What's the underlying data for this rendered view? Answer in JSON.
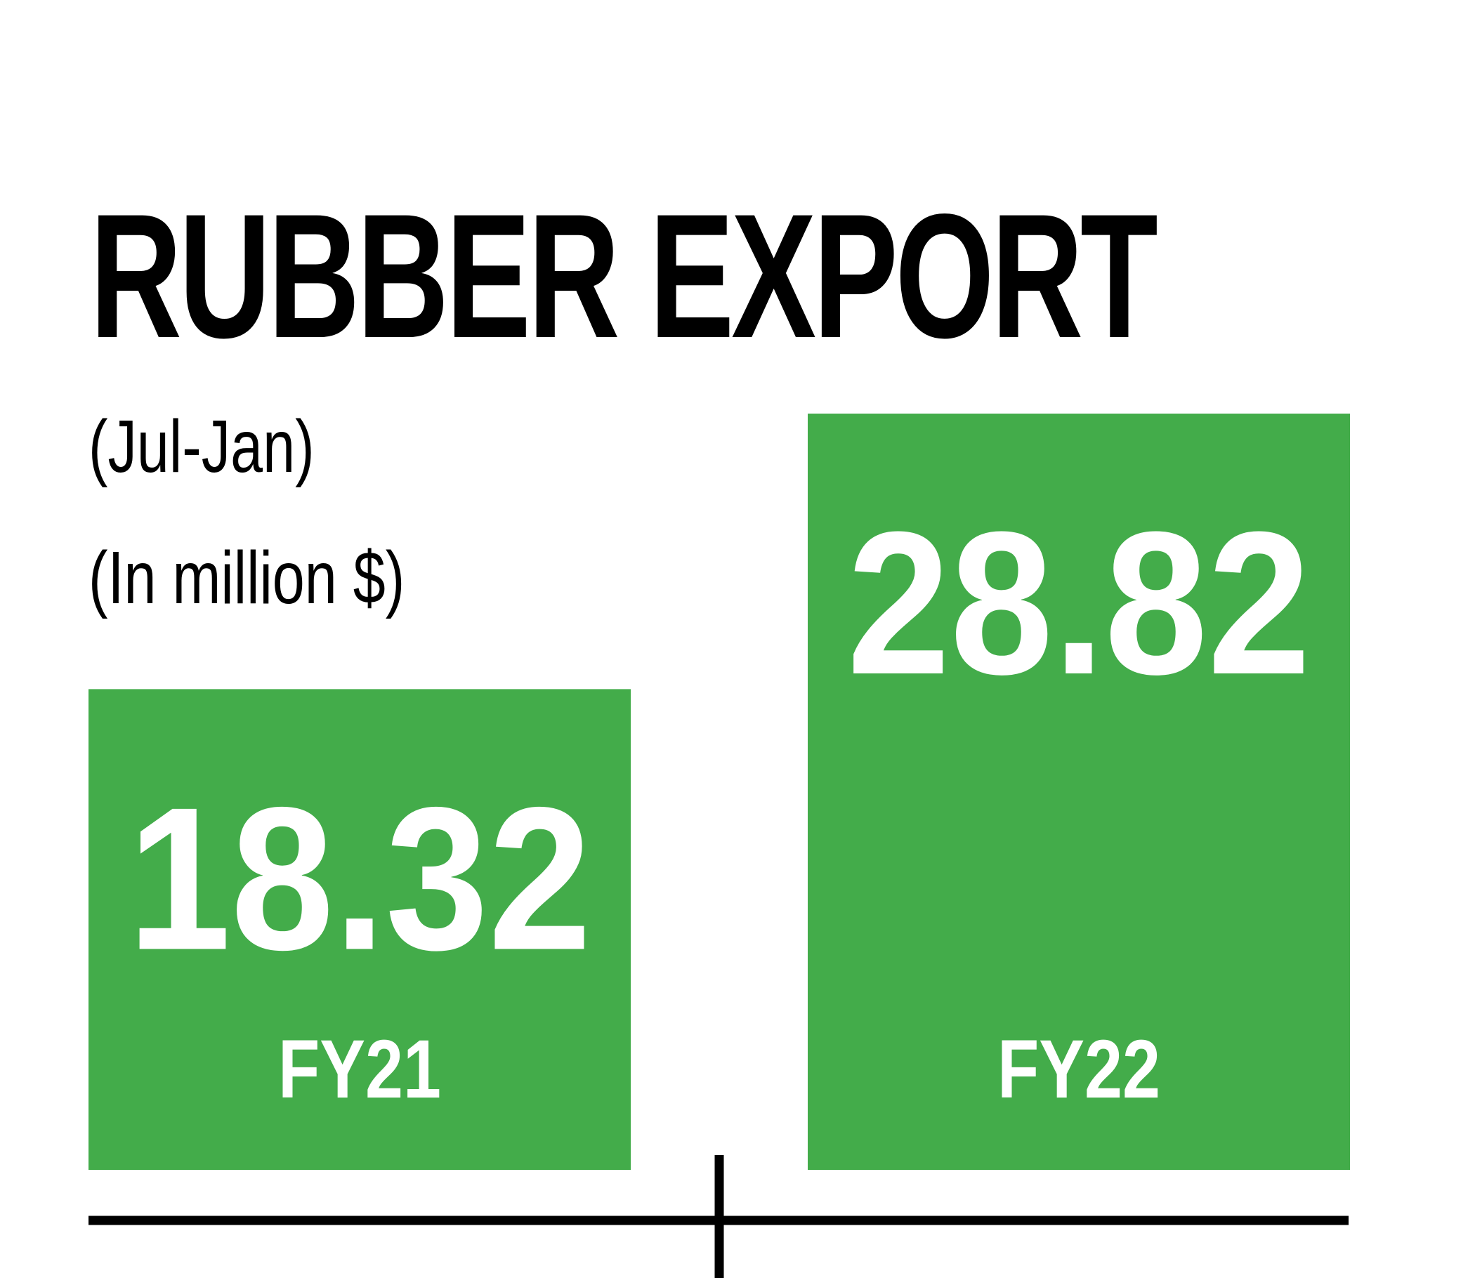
{
  "header": {
    "title": "RUBBER EXPORT",
    "period": "(Jul-Jan)",
    "unit": "(In million $)"
  },
  "colors": {
    "bar": "#43AC4A",
    "label": "#ffffff",
    "axis": "#000000"
  },
  "chart_data": {
    "type": "bar",
    "title": "RUBBER EXPORT",
    "subtitle": "(Jul-Jan)",
    "ylabel": "(In million $)",
    "categories": [
      "FY21",
      "FY22"
    ],
    "values": [
      18.32,
      28.82
    ],
    "value_labels": [
      "18.32",
      "28.82"
    ],
    "ylim": [
      0,
      28.82
    ],
    "grid": false,
    "legend": "none"
  }
}
